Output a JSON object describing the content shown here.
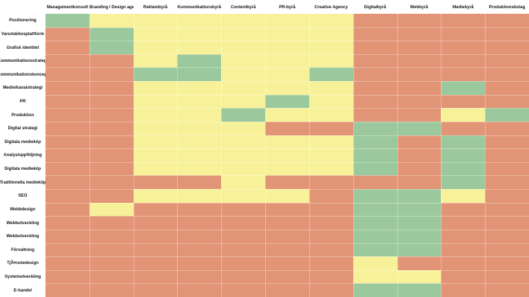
{
  "chart_data": {
    "type": "heatmap",
    "columns": [
      "Managementkonsult",
      "Branding / Design agency",
      "Reklambyrå",
      "Kommunikationsbyrå",
      "Contentbyrå",
      "PR-byrå",
      "Creative Agency",
      "Digitalbyrå",
      "Webbyrå",
      "Mediebyrå",
      "Produktionsbolag"
    ],
    "rows": [
      "Positionering",
      "Varumärkesplattform",
      "Grafisk identitet",
      "Kommunikationsstrategi",
      "Kommunikationskoncept",
      "Medie/kanalstrategi",
      "PR",
      "Produktion",
      "Digital strategi",
      "Digitala medieköp",
      "Analys/uppföljning",
      "Digitala medieköp",
      "Traditionella medieköp",
      "SEO",
      "Webbdesign",
      "Webbutveckling",
      "Webbutveckling",
      "Förvaltning",
      "TjÃ¤nstedesign",
      "Systemutveckling",
      "E-handel"
    ],
    "legend": {
      "g": "green",
      "y": "yellow",
      "r": "red"
    },
    "colors": {
      "g": "#9bc89c",
      "y": "#f7f29a",
      "r": "#e29476"
    },
    "matrix": [
      [
        "g",
        "y",
        "y",
        "y",
        "y",
        "y",
        "y",
        "r",
        "r",
        "r",
        "r"
      ],
      [
        "r",
        "g",
        "y",
        "y",
        "y",
        "y",
        "y",
        "r",
        "r",
        "r",
        "r"
      ],
      [
        "r",
        "g",
        "y",
        "y",
        "y",
        "y",
        "y",
        "r",
        "r",
        "r",
        "r"
      ],
      [
        "r",
        "r",
        "y",
        "g",
        "y",
        "y",
        "y",
        "r",
        "r",
        "r",
        "r"
      ],
      [
        "r",
        "r",
        "g",
        "g",
        "y",
        "y",
        "g",
        "r",
        "r",
        "r",
        "r"
      ],
      [
        "r",
        "r",
        "y",
        "y",
        "y",
        "y",
        "y",
        "r",
        "r",
        "g",
        "r"
      ],
      [
        "r",
        "r",
        "y",
        "y",
        "y",
        "g",
        "y",
        "r",
        "r",
        "r",
        "r"
      ],
      [
        "r",
        "r",
        "y",
        "y",
        "g",
        "y",
        "y",
        "r",
        "r",
        "y",
        "g"
      ],
      [
        "r",
        "r",
        "y",
        "y",
        "y",
        "r",
        "r",
        "g",
        "g",
        "r",
        "r"
      ],
      [
        "r",
        "r",
        "y",
        "y",
        "y",
        "y",
        "y",
        "g",
        "r",
        "g",
        "r"
      ],
      [
        "r",
        "r",
        "y",
        "y",
        "y",
        "y",
        "y",
        "g",
        "r",
        "g",
        "r"
      ],
      [
        "r",
        "r",
        "y",
        "y",
        "y",
        "y",
        "y",
        "g",
        "r",
        "g",
        "r"
      ],
      [
        "r",
        "r",
        "r",
        "r",
        "y",
        "r",
        "r",
        "r",
        "r",
        "g",
        "r"
      ],
      [
        "r",
        "r",
        "y",
        "y",
        "y",
        "y",
        "r",
        "g",
        "g",
        "y",
        "r"
      ],
      [
        "r",
        "y",
        "r",
        "r",
        "r",
        "r",
        "r",
        "g",
        "g",
        "r",
        "r"
      ],
      [
        "r",
        "r",
        "r",
        "r",
        "r",
        "r",
        "r",
        "g",
        "g",
        "r",
        "r"
      ],
      [
        "r",
        "r",
        "r",
        "r",
        "r",
        "r",
        "r",
        "g",
        "g",
        "r",
        "r"
      ],
      [
        "r",
        "r",
        "r",
        "r",
        "r",
        "r",
        "r",
        "g",
        "g",
        "r",
        "r"
      ],
      [
        "r",
        "r",
        "r",
        "r",
        "r",
        "r",
        "r",
        "y",
        "r",
        "r",
        "r"
      ],
      [
        "r",
        "r",
        "r",
        "r",
        "r",
        "r",
        "r",
        "y",
        "y",
        "r",
        "r"
      ],
      [
        "r",
        "r",
        "r",
        "r",
        "r",
        "r",
        "r",
        "g",
        "g",
        "r",
        "r"
      ]
    ]
  }
}
